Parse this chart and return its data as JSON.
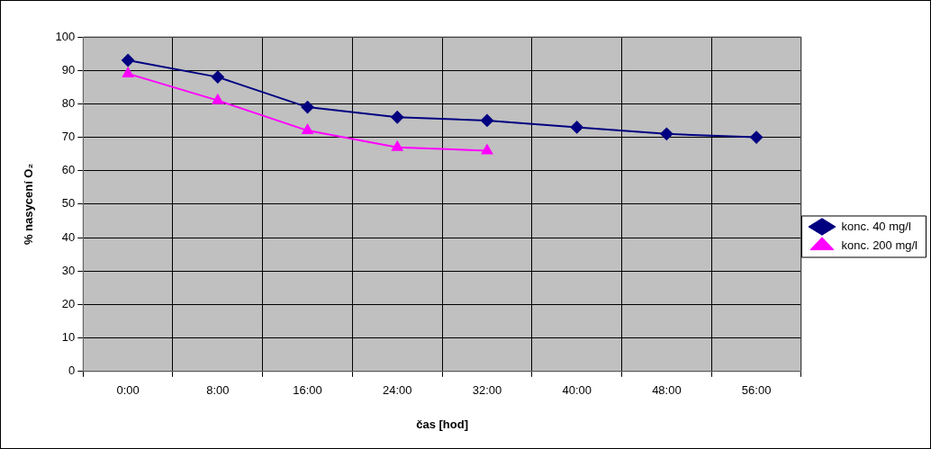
{
  "chart_data": {
    "type": "line",
    "xlabel": "čas [hod]",
    "ylabel": "% nasycení O₂",
    "categories": [
      "0:00",
      "8:00",
      "16:00",
      "24:00",
      "32:00",
      "40:00",
      "48:00",
      "56:00"
    ],
    "series": [
      {
        "name": "konc. 40 mg/l",
        "color": "#000080",
        "marker": "diamond",
        "values": [
          93,
          88,
          79,
          76,
          75,
          73,
          71,
          70
        ]
      },
      {
        "name": "konc. 200 mg/l",
        "color": "#ff00ff",
        "marker": "triangle",
        "values": [
          89,
          81,
          72,
          67,
          66,
          null,
          null,
          null
        ]
      }
    ],
    "ylim": [
      0,
      100
    ],
    "yticks": [
      0,
      10,
      20,
      30,
      40,
      50,
      60,
      70,
      80,
      90,
      100
    ],
    "grid": true,
    "legend": "right",
    "line_style": "solid"
  }
}
